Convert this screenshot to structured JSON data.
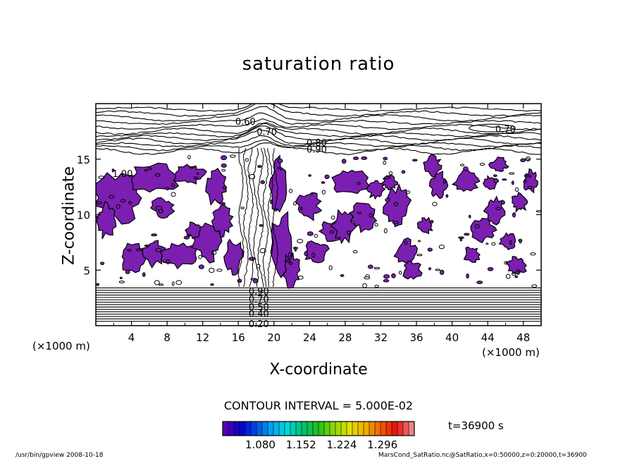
{
  "page": {
    "title": "saturation ratio",
    "contour_interval": "CONTOUR INTERVAL = 5.000E-02",
    "time_label": "t=36900 s",
    "footer_left": "/usr/bin/gpview  2008-10-18",
    "footer_right": "MarsCond_SatRatio.nc@SatRatio,x=0:50000,z=0:20000,t=36900"
  },
  "chart_data": {
    "type": "contour",
    "title": "saturation ratio",
    "xlabel": "X-coordinate",
    "ylabel": "Z-coordinate",
    "x_unit_label": "(×1000 m)",
    "y_unit_label": "(×1000 m)",
    "xlim": [
      0,
      50
    ],
    "ylim": [
      0,
      20
    ],
    "x_ticks": [
      4,
      8,
      12,
      16,
      20,
      24,
      28,
      32,
      36,
      40,
      44,
      48
    ],
    "y_ticks": [
      5,
      10,
      15
    ],
    "contour_interval": 0.05,
    "contour_labels": [
      {
        "text": "0.60",
        "x": 16.8,
        "z": 18.4
      },
      {
        "text": "0.70",
        "x": 19.2,
        "z": 17.5
      },
      {
        "text": "0.80",
        "x": 24.8,
        "z": 16.5
      },
      {
        "text": "0.90",
        "x": 24.8,
        "z": 15.9
      },
      {
        "text": "0.70",
        "x": 46.0,
        "z": 17.7
      },
      {
        "text": "1.00",
        "x": 3.0,
        "z": 13.7
      },
      {
        "text": "0.90",
        "x": 18.3,
        "z": 3.1
      },
      {
        "text": "0.70",
        "x": 18.3,
        "z": 2.4
      },
      {
        "text": "0.50",
        "x": 18.3,
        "z": 1.7
      },
      {
        "text": "0.40",
        "x": 18.3,
        "z": 1.1
      },
      {
        "text": "0.20",
        "x": 18.3,
        "z": 0.2
      }
    ],
    "shaded_threshold": 1.0,
    "shading_color": "#7b1fb0",
    "colorbar": {
      "labels": [
        "1.080",
        "1.152",
        "1.224",
        "1.296"
      ],
      "colors": [
        "#5a00b0",
        "#0000c8",
        "#0050e6",
        "#00a8f0",
        "#00d8d8",
        "#00c070",
        "#20c020",
        "#90d800",
        "#e0e000",
        "#f0b000",
        "#f06000",
        "#e81010",
        "#f08080"
      ]
    }
  }
}
